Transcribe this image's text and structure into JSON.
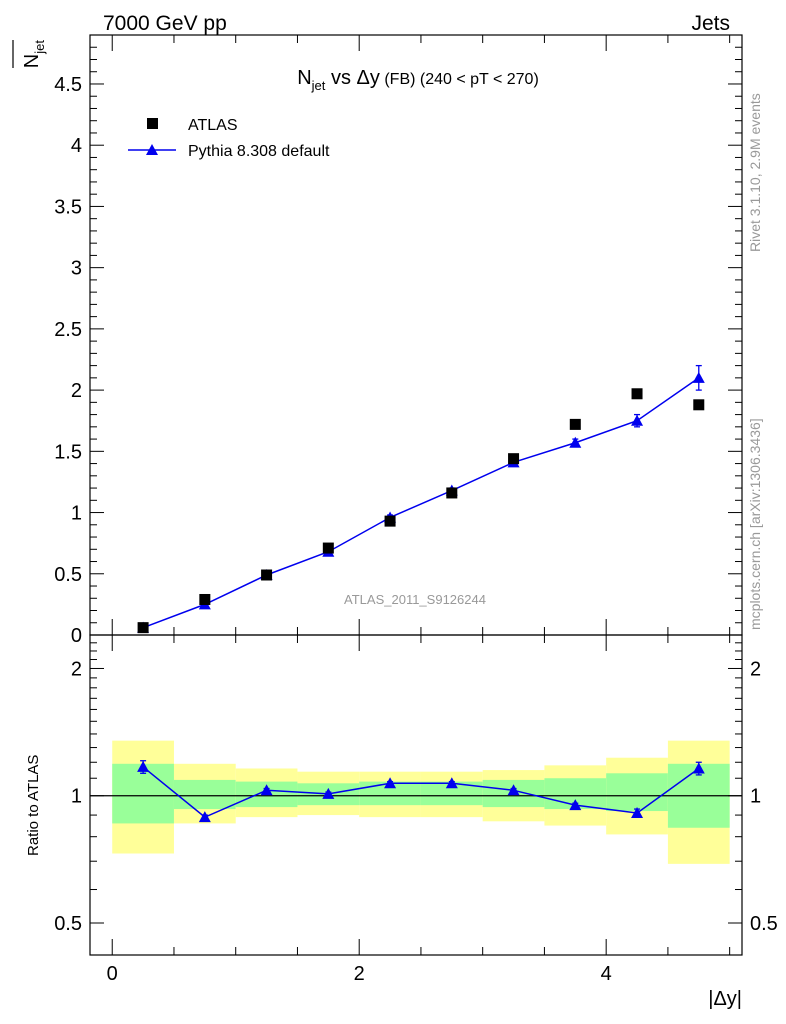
{
  "header": {
    "left": "7000 GeV pp",
    "right": "Jets"
  },
  "side_labels": {
    "rivet": "Rivet 3.1.10,  2.9M events",
    "mcplots": "mcplots.cern.ch [arXiv:1306.3436]"
  },
  "title": {
    "main": "N",
    "sub": "jet",
    "rest": " vs Δy",
    "small": " (FB)",
    "range": " (240 < pT < 270)"
  },
  "y_axis_top": {
    "main": "N",
    "sub": "jet"
  },
  "y_axis_ratio": "Ratio to ATLAS",
  "x_axis_label": "|Δy|",
  "watermark": "ATLAS_2011_S9126244",
  "legend": [
    {
      "label": "ATLAS",
      "marker": "square",
      "color": "#000000"
    },
    {
      "label": "Pythia 8.308 default",
      "marker": "triangle",
      "color": "#0000ee"
    }
  ],
  "colors": {
    "data": "#000000",
    "mc": "#0000ee",
    "band_inner": "#99ff99",
    "band_outer": "#ffff99"
  },
  "chart_data": [
    {
      "type": "scatter",
      "panel": "main",
      "x": [
        0.25,
        0.75,
        1.25,
        1.75,
        2.25,
        2.75,
        3.25,
        3.75,
        4.25,
        4.75
      ],
      "series": [
        {
          "name": "ATLAS",
          "values": [
            0.06,
            0.29,
            0.49,
            0.71,
            0.93,
            1.16,
            1.44,
            1.72,
            1.97,
            1.88
          ]
        },
        {
          "name": "Pythia 8.308 default",
          "values": [
            0.06,
            0.25,
            0.49,
            0.68,
            0.96,
            1.18,
            1.41,
            1.57,
            1.75,
            2.1
          ],
          "errors": [
            0.01,
            0.01,
            0.01,
            0.02,
            0.02,
            0.02,
            0.02,
            0.03,
            0.05,
            0.1
          ]
        }
      ],
      "xlim": [
        -0.18,
        5.1
      ],
      "ylim": [
        0,
        4.9
      ],
      "yticks": [
        0,
        0.5,
        1,
        1.5,
        2,
        2.5,
        3,
        3.5,
        4,
        4.5
      ],
      "ytick_labels": [
        "0",
        "0.5",
        "1",
        "1.5",
        "2",
        "2.5",
        "3",
        "3.5",
        "4",
        "4.5"
      ]
    },
    {
      "type": "line",
      "panel": "ratio",
      "x": [
        0.25,
        0.75,
        1.25,
        1.75,
        2.25,
        2.75,
        3.25,
        3.75,
        4.25,
        4.75
      ],
      "bin_edges": [
        0,
        0.5,
        1,
        1.5,
        2,
        2.5,
        3,
        3.5,
        4,
        4.5,
        5
      ],
      "series": [
        {
          "name": "Pythia 8.308 default",
          "values": [
            1.17,
            0.89,
            1.03,
            1.01,
            1.07,
            1.07,
            1.03,
            0.95,
            0.91,
            1.16
          ],
          "errors": [
            0.04,
            0.01,
            0.01,
            0.01,
            0.01,
            0.01,
            0.01,
            0.01,
            0.02,
            0.04
          ]
        }
      ],
      "band_inner": {
        "low": [
          0.86,
          0.93,
          0.94,
          0.95,
          0.95,
          0.95,
          0.94,
          0.93,
          0.92,
          0.84
        ],
        "high": [
          1.19,
          1.09,
          1.08,
          1.07,
          1.08,
          1.08,
          1.09,
          1.1,
          1.13,
          1.19
        ]
      },
      "band_outer": {
        "low": [
          0.73,
          0.86,
          0.89,
          0.9,
          0.89,
          0.89,
          0.87,
          0.85,
          0.81,
          0.69
        ],
        "high": [
          1.35,
          1.19,
          1.16,
          1.14,
          1.14,
          1.14,
          1.15,
          1.18,
          1.23,
          1.35
        ]
      },
      "reference": 1,
      "xlim": [
        -0.18,
        5.1
      ],
      "ylim": [
        0.42,
        2.4
      ],
      "scale": "log",
      "yticks": [
        0.5,
        1,
        2
      ],
      "ytick_labels": [
        "0.5",
        "1",
        "2"
      ],
      "xticks": [
        0,
        2,
        4
      ],
      "xtick_labels": [
        "0",
        "2",
        "4"
      ]
    }
  ]
}
